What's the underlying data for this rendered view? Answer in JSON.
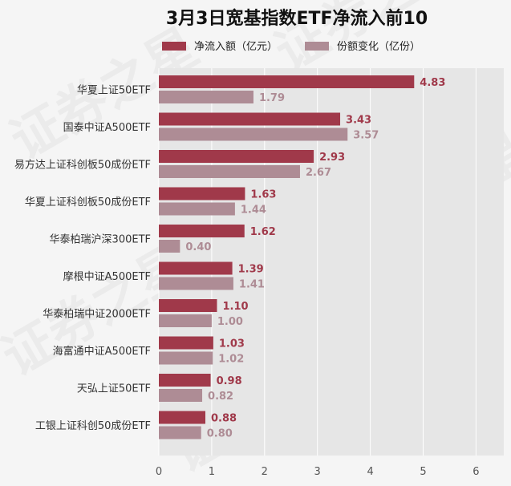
{
  "chart_data": {
    "type": "bar",
    "orientation": "horizontal",
    "title": "3月3日宽基指数ETF净流入前10",
    "categories": [
      "华夏上证50ETF",
      "国泰中证A500ETF",
      "易方达上证科创板50成份ETF",
      "华夏上证科创板50成份ETF",
      "华泰柏瑞沪深300ETF",
      "摩根中证A500ETF",
      "华泰柏瑞中证2000ETF",
      "海富通中证A500ETF",
      "天弘上证50ETF",
      "工银上证科创50成份ETF"
    ],
    "series": [
      {
        "name": "净流入额（亿元）",
        "color": "#a0394a",
        "values": [
          4.83,
          3.43,
          2.93,
          1.63,
          1.62,
          1.39,
          1.1,
          1.03,
          0.98,
          0.88
        ],
        "labels": [
          "4.83",
          "3.43",
          "2.93",
          "1.63",
          "1.62",
          "1.39",
          "1.10",
          "1.03",
          "0.98",
          "0.88"
        ]
      },
      {
        "name": "份额变化（亿份）",
        "color": "#ae8c95",
        "values": [
          1.79,
          3.57,
          2.67,
          1.44,
          0.4,
          1.41,
          1.0,
          1.02,
          0.82,
          0.8
        ],
        "labels": [
          "1.79",
          "3.57",
          "2.67",
          "1.44",
          "0.40",
          "1.41",
          "1.00",
          "1.02",
          "0.82",
          "0.80"
        ]
      }
    ],
    "xlim": [
      0,
      6.5
    ],
    "xticks": [
      "0",
      "1",
      "2",
      "3",
      "4",
      "5",
      "6"
    ],
    "grid": true,
    "legend_position": "top",
    "watermark": "证券之星"
  }
}
